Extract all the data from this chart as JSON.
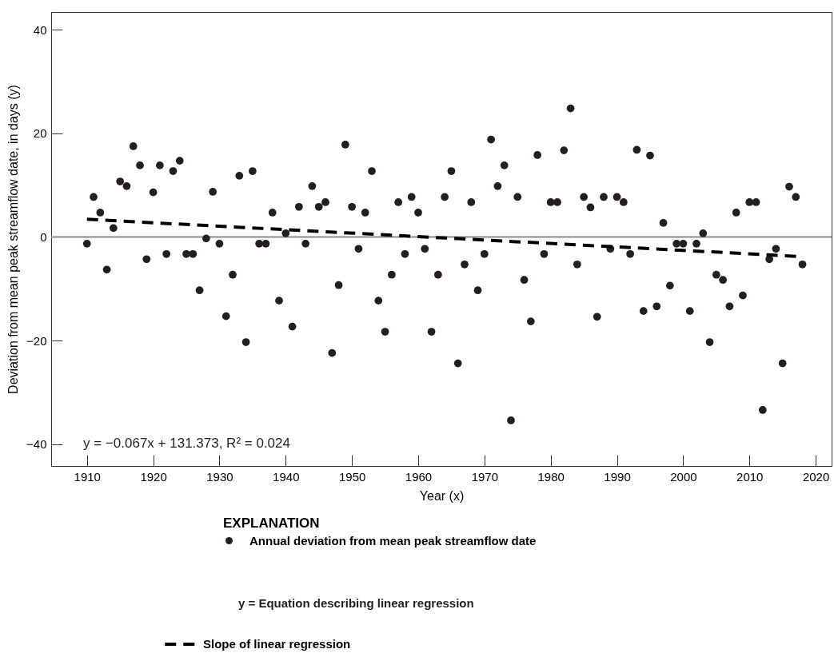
{
  "chart_data": {
    "type": "scatter",
    "xlabel": "Year (x)",
    "ylabel": "Deviation from mean peak streamflow date, in days (y)",
    "legend_title": "EXPLANATION",
    "legend": "bottom",
    "grid": false,
    "marker": "circle",
    "xlim": [
      1904.6,
      2022.4
    ],
    "ylim": [
      -44.2,
      43.4
    ],
    "xticks": [
      1910,
      1920,
      1930,
      1940,
      1950,
      1960,
      1970,
      1980,
      1990,
      2000,
      2010,
      2020
    ],
    "yticks": [
      -40,
      -20,
      0,
      20,
      40
    ],
    "ref_lines": [
      {
        "axis": "y",
        "value": 0,
        "color": "#8c8c8c"
      }
    ],
    "annotations": [
      "y = −0.067x + 131.373, R² = 0.024",
      "y =    Equation describing linear regression"
    ],
    "series": [
      {
        "name": "Annual deviation from mean peak streamflow date",
        "color": "#231f20",
        "x": [
          1910,
          1911,
          1912,
          1913,
          1914,
          1915,
          1916,
          1917,
          1918,
          1919,
          1920,
          1921,
          1922,
          1923,
          1924,
          1925,
          1926,
          1927,
          1928,
          1929,
          1930,
          1931,
          1932,
          1933,
          1934,
          1935,
          1936,
          1937,
          1938,
          1939,
          1940,
          1941,
          1942,
          1943,
          1944,
          1945,
          1946,
          1947,
          1948,
          1949,
          1950,
          1951,
          1952,
          1953,
          1954,
          1955,
          1956,
          1957,
          1958,
          1959,
          1960,
          1961,
          1962,
          1963,
          1964,
          1965,
          1966,
          1967,
          1968,
          1969,
          1970,
          1971,
          1972,
          1973,
          1974,
          1975,
          1976,
          1977,
          1978,
          1979,
          1980,
          1981,
          1982,
          1983,
          1984,
          1985,
          1986,
          1987,
          1988,
          1989,
          1990,
          1991,
          1992,
          1993,
          1994,
          1995,
          1996,
          1997,
          1998,
          1999,
          2000,
          2001,
          2002,
          2003,
          2004,
          2005,
          2006,
          2007,
          2008,
          2009,
          2010,
          2011,
          2012,
          2013,
          2014,
          2015,
          2016,
          2017,
          2018
        ],
        "values": [
          -1.3,
          7.7,
          4.7,
          -6.3,
          1.7,
          10.7,
          9.8,
          17.5,
          13.8,
          -4.3,
          8.6,
          13.8,
          -3.3,
          12.7,
          14.7,
          -3.3,
          -3.3,
          -10.3,
          -0.3,
          8.7,
          -1.3,
          -15.3,
          -7.3,
          11.8,
          -20.3,
          12.7,
          -1.3,
          -1.3,
          4.7,
          -12.3,
          0.7,
          -17.3,
          5.8,
          -1.3,
          9.8,
          5.8,
          6.7,
          -22.4,
          -9.3,
          17.8,
          5.8,
          -2.3,
          4.7,
          12.7,
          -12.3,
          -18.3,
          -7.3,
          6.7,
          -3.3,
          7.7,
          4.7,
          -2.3,
          -18.3,
          -7.3,
          7.7,
          12.7,
          -24.4,
          -5.3,
          6.7,
          -10.3,
          -3.3,
          18.8,
          9.8,
          13.8,
          -35.4,
          7.7,
          -8.3,
          -16.3,
          15.8,
          -3.3,
          6.7,
          6.7,
          16.7,
          24.8,
          -5.3,
          7.7,
          5.7,
          -15.4,
          7.7,
          -2.3,
          7.7,
          6.7,
          -3.3,
          16.8,
          -14.3,
          15.7,
          -13.4,
          2.7,
          -9.4,
          -1.3,
          -1.3,
          -14.3,
          -1.3,
          0.7,
          -20.3,
          -7.3,
          -8.3,
          -13.4,
          4.7,
          -11.3,
          6.7,
          6.7,
          -33.4,
          -4.3,
          -2.3,
          -24.4,
          9.7,
          7.7,
          -5.3
        ]
      },
      {
        "name": "Slope of linear regression",
        "type": "line",
        "line_style": "dashed",
        "marker": "none",
        "color": "#000000",
        "x": [
          1910,
          2018
        ],
        "values": [
          3.4,
          -3.8
        ]
      }
    ]
  }
}
